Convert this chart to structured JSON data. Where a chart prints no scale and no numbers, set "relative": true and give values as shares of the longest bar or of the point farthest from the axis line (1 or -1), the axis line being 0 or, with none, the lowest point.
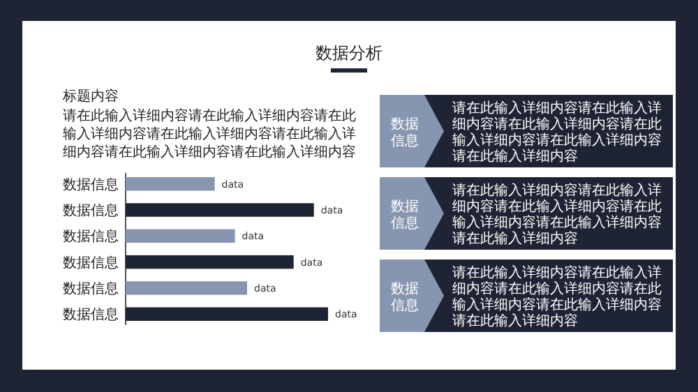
{
  "chart_data": [
    {
      "type": "bar",
      "orientation": "horizontal",
      "relative": true,
      "title": "数据分析",
      "subtitle": "标题内容",
      "annotations": [
        "请在此输入详细内容请在此输入详细内容请在此输入详细内容请在此输入详细内容请在此输入详细内容请在此输入详细内容请在此输入详细内容",
        "data",
        "data",
        "data",
        "data",
        "data",
        "data"
      ],
      "categories": [
        "数据信息",
        "数据信息",
        "数据信息",
        "数据信息",
        "数据信息",
        "数据信息"
      ],
      "values": [
        0.44,
        0.93,
        0.54,
        0.83,
        0.6,
        1
      ],
      "colors": [
        "#8796b0",
        "#1e2433",
        "#8796b0",
        "#1e2433",
        "#8796b0",
        "#1e2433"
      ]
    },
    {
      "type": "other",
      "annotations": [
        "数据信息",
        "请在此输入详细内容请在此输入详细内容请在此输入详细内容请在此输入详细内容请在此输入详细内容请在此输入详细内容",
        "数据信息",
        "请在此输入详细内容请在此输入详细内容请在此输入详细内容请在此输入详细内容请在此输入详细内容请在此输入详细内容",
        "数据信息",
        "请在此输入详细内容请在此输入详细内容请在此输入详细内容请在此输入详细内容请在此输入详细内容请在此输入详细内容"
      ]
    }
  ]
}
